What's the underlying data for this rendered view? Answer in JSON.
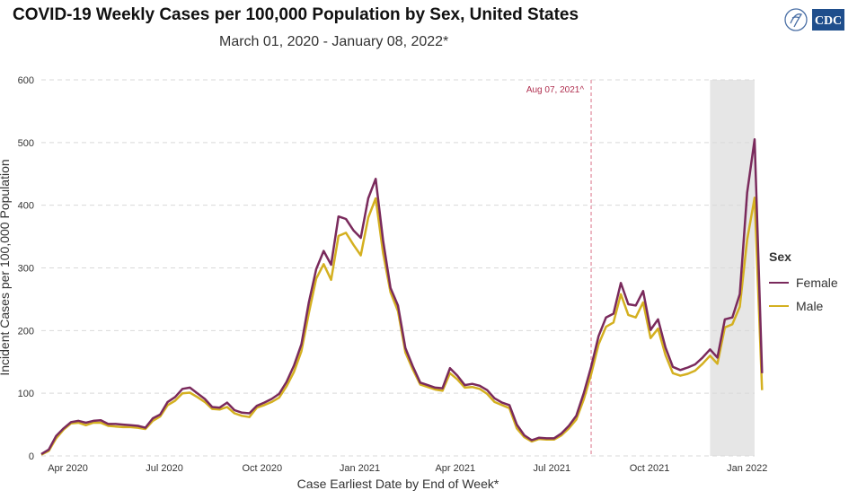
{
  "header": {
    "title": "COVID-19 Weekly Cases per 100,000 Population by Sex, United States",
    "subtitle": "March 01, 2020 - January 08, 2022*",
    "logo_text": "CDC"
  },
  "colors": {
    "female": "#7a2a5c",
    "male": "#d4b020",
    "grid": "#d9d9d9",
    "shade": "#e6e6e6",
    "marker_line": "#e8a0b0",
    "marker_text": "#b03050"
  },
  "chart_data": {
    "type": "line",
    "title": "COVID-19 Weekly Cases per 100,000 Population by Sex, United States",
    "subtitle": "March 01, 2020 - January 08, 2022*",
    "xlabel": "Case Earliest Date by End of Week*",
    "ylabel": "Incident Cases per 100,000 Population",
    "ylim": [
      0,
      600
    ],
    "yticks": [
      0,
      100,
      200,
      300,
      400,
      500,
      600
    ],
    "xtick_labels": [
      "Apr 2020",
      "Jul 2020",
      "Oct 2020",
      "Jan 2021",
      "Apr 2021",
      "Jul 2021",
      "Oct 2021",
      "Jan 2022"
    ],
    "xtick_dates": [
      "2020-04-01",
      "2020-07-01",
      "2020-10-01",
      "2021-01-01",
      "2021-04-01",
      "2021-07-01",
      "2021-10-01",
      "2022-01-01"
    ],
    "x_range": [
      "2020-03-07",
      "2022-01-08"
    ],
    "grid": true,
    "legend_title": "Sex",
    "legend_position": "right",
    "annotation": {
      "label": "Aug 07, 2021^",
      "date": "2021-08-07"
    },
    "shaded_range": [
      "2021-11-27",
      "2022-01-08"
    ],
    "series": [
      {
        "name": "Female",
        "values": [
          3,
          10,
          32,
          44,
          54,
          56,
          53,
          56,
          57,
          51,
          51,
          50,
          49,
          48,
          45,
          60,
          66,
          86,
          94,
          107,
          109,
          100,
          91,
          78,
          77,
          85,
          73,
          69,
          68,
          80,
          85,
          91,
          99,
          118,
          144,
          178,
          245,
          298,
          327,
          305,
          382,
          378,
          360,
          348,
          411,
          442,
          343,
          268,
          240,
          172,
          143,
          117,
          113,
          109,
          108,
          140,
          128,
          113,
          115,
          112,
          105,
          92,
          85,
          81,
          50,
          33,
          25,
          29,
          28,
          28,
          36,
          48,
          64,
          100,
          142,
          191,
          221,
          227,
          276,
          242,
          240,
          263,
          201,
          218,
          173,
          142,
          137,
          141,
          146,
          157,
          170,
          157,
          218,
          221,
          258,
          420,
          505,
          132
        ]
      },
      {
        "name": "Male",
        "values": [
          2,
          8,
          28,
          42,
          52,
          53,
          49,
          53,
          53,
          48,
          47,
          46,
          46,
          45,
          43,
          56,
          63,
          81,
          88,
          100,
          101,
          94,
          86,
          75,
          74,
          78,
          68,
          64,
          62,
          77,
          81,
          86,
          93,
          111,
          134,
          167,
          228,
          283,
          306,
          281,
          351,
          356,
          337,
          320,
          380,
          411,
          323,
          261,
          231,
          165,
          138,
          114,
          110,
          106,
          104,
          132,
          122,
          109,
          110,
          107,
          99,
          86,
          81,
          76,
          44,
          30,
          23,
          27,
          26,
          26,
          33,
          44,
          58,
          90,
          130,
          178,
          206,
          213,
          258,
          225,
          221,
          245,
          188,
          203,
          161,
          132,
          128,
          131,
          136,
          147,
          160,
          147,
          205,
          210,
          238,
          345,
          412,
          105
        ]
      }
    ]
  }
}
